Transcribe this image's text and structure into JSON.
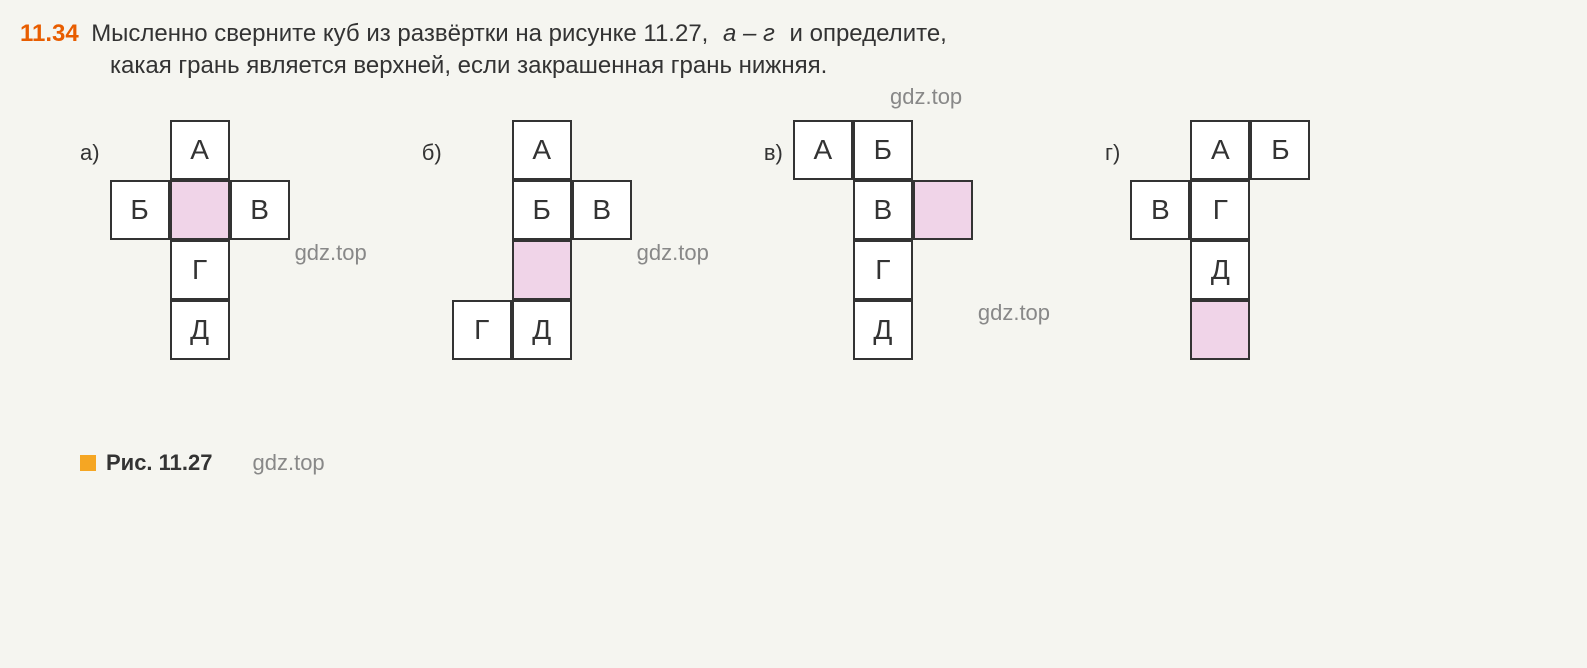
{
  "problem": {
    "number": "11.34",
    "text_line1": "Мысленно сверните куб из развёртки на рисунке 11.27, ",
    "text_line1_italic": "а – г",
    "text_line1_end": " и определите,",
    "text_line2": "какая грань является верхней, если закрашенная грань нижняя."
  },
  "watermarks": {
    "w1": "gdz.top",
    "w2": "gdz.top",
    "w3": "gdz.top",
    "w4": "gdz.top",
    "w5": "gdz.top"
  },
  "figures": {
    "a": {
      "label": "а)",
      "cells": [
        {
          "row": 0,
          "col": 1,
          "text": "А",
          "bordered": true,
          "shaded": false
        },
        {
          "row": 1,
          "col": 0,
          "text": "Б",
          "bordered": true,
          "shaded": false
        },
        {
          "row": 1,
          "col": 1,
          "text": "",
          "bordered": true,
          "shaded": true
        },
        {
          "row": 1,
          "col": 2,
          "text": "В",
          "bordered": true,
          "shaded": false
        },
        {
          "row": 2,
          "col": 1,
          "text": "Г",
          "bordered": true,
          "shaded": false
        },
        {
          "row": 3,
          "col": 1,
          "text": "Д",
          "bordered": true,
          "shaded": false
        }
      ]
    },
    "b": {
      "label": "б)",
      "cells": [
        {
          "row": 0,
          "col": 1,
          "text": "А",
          "bordered": true,
          "shaded": false
        },
        {
          "row": 1,
          "col": 1,
          "text": "Б",
          "bordered": true,
          "shaded": false
        },
        {
          "row": 1,
          "col": 2,
          "text": "В",
          "bordered": true,
          "shaded": false
        },
        {
          "row": 2,
          "col": 1,
          "text": "",
          "bordered": true,
          "shaded": true
        },
        {
          "row": 3,
          "col": 0,
          "text": "Г",
          "bordered": true,
          "shaded": false
        },
        {
          "row": 3,
          "col": 1,
          "text": "Д",
          "bordered": true,
          "shaded": false
        }
      ]
    },
    "c": {
      "label": "в)",
      "cells": [
        {
          "row": 0,
          "col": 0,
          "text": "А",
          "bordered": true,
          "shaded": false
        },
        {
          "row": 0,
          "col": 1,
          "text": "Б",
          "bordered": true,
          "shaded": false
        },
        {
          "row": 1,
          "col": 1,
          "text": "В",
          "bordered": true,
          "shaded": false
        },
        {
          "row": 1,
          "col": 2,
          "text": "",
          "bordered": true,
          "shaded": true
        },
        {
          "row": 2,
          "col": 1,
          "text": "Г",
          "bordered": true,
          "shaded": false
        },
        {
          "row": 3,
          "col": 1,
          "text": "Д",
          "bordered": true,
          "shaded": false
        }
      ]
    },
    "d": {
      "label": "г)",
      "cells": [
        {
          "row": 0,
          "col": 1,
          "text": "А",
          "bordered": true,
          "shaded": false
        },
        {
          "row": 0,
          "col": 2,
          "text": "Б",
          "bordered": true,
          "shaded": false
        },
        {
          "row": 1,
          "col": 0,
          "text": "В",
          "bordered": true,
          "shaded": false
        },
        {
          "row": 1,
          "col": 1,
          "text": "Г",
          "bordered": true,
          "shaded": false
        },
        {
          "row": 2,
          "col": 1,
          "text": "Д",
          "bordered": true,
          "shaded": false
        },
        {
          "row": 3,
          "col": 1,
          "text": "",
          "bordered": true,
          "shaded": true
        }
      ]
    }
  },
  "caption": {
    "text": "Рис. 11.27"
  },
  "styling": {
    "cell_size": 60,
    "border_color": "#333333",
    "border_width": 2,
    "shaded_color": "#f0d4e8",
    "cell_bg": "#ffffff",
    "page_bg": "#f5f5f0",
    "number_color": "#e85d00",
    "text_color": "#333333",
    "caption_square_color": "#f5a623",
    "watermark_color": "#888888",
    "font_size_text": 24,
    "font_size_cell": 28,
    "font_size_label": 22
  }
}
